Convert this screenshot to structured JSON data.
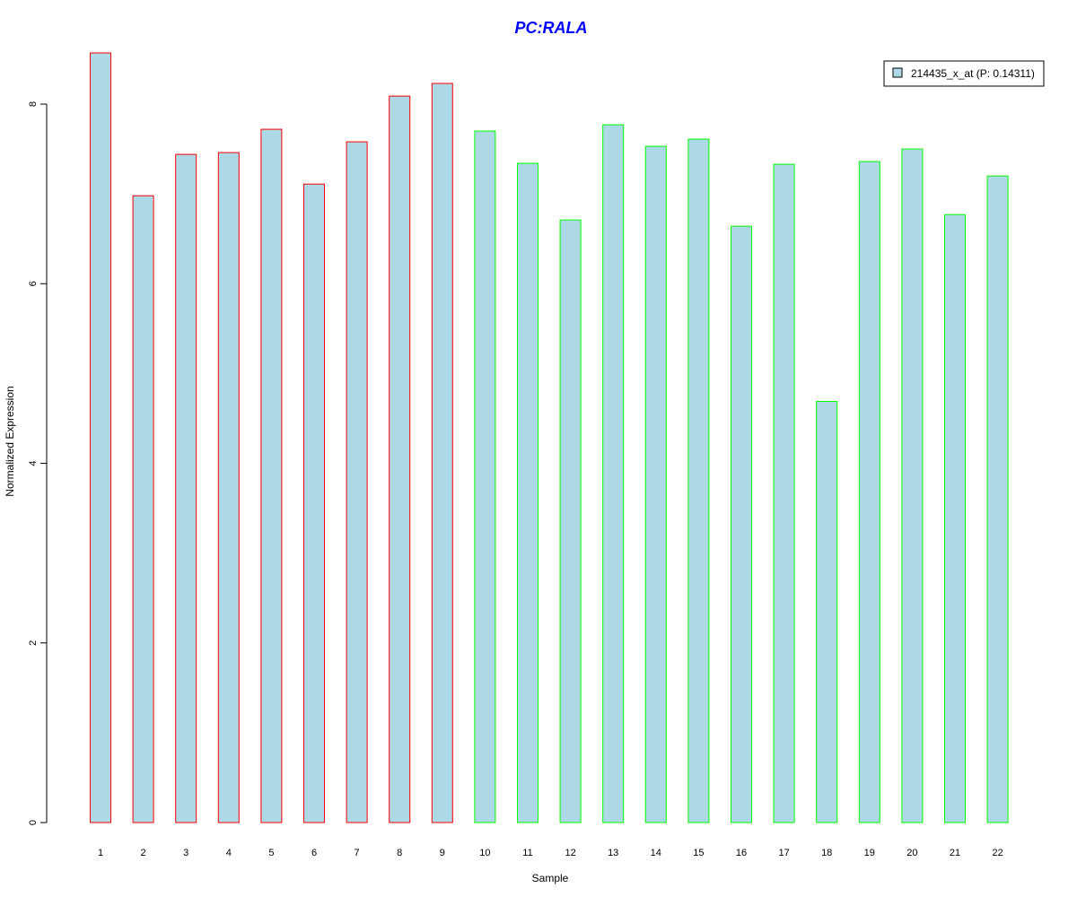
{
  "chart_data": {
    "type": "bar",
    "title": "PC:RALA",
    "xlabel": "Sample",
    "ylabel": "Normalized Expression",
    "categories": [
      "1",
      "2",
      "3",
      "4",
      "5",
      "6",
      "7",
      "8",
      "9",
      "10",
      "11",
      "12",
      "13",
      "14",
      "15",
      "16",
      "17",
      "18",
      "19",
      "20",
      "21",
      "22"
    ],
    "values": [
      8.57,
      6.98,
      7.44,
      7.46,
      7.72,
      7.11,
      7.58,
      8.09,
      8.23,
      7.7,
      7.34,
      6.71,
      7.77,
      7.53,
      7.61,
      6.64,
      7.33,
      4.69,
      7.36,
      7.5,
      6.77,
      7.2
    ],
    "groups": [
      "red",
      "red",
      "red",
      "red",
      "red",
      "red",
      "red",
      "red",
      "red",
      "green",
      "green",
      "green",
      "green",
      "green",
      "green",
      "green",
      "green",
      "green",
      "green",
      "green",
      "green",
      "green"
    ],
    "ylim": [
      0,
      8.57
    ],
    "yticks": [
      "0",
      "2",
      "4",
      "6",
      "8"
    ],
    "grid": false,
    "legend": {
      "placement": "top-right",
      "entries": [
        {
          "label": "214435_x_at (P: 0.14311)",
          "color": "#add8e6"
        }
      ]
    },
    "colors": {
      "title": "#0000ff",
      "fill": "#add8e6",
      "red_border": "#ff0000",
      "green_border": "#00ff00",
      "axis": "#000000"
    }
  }
}
